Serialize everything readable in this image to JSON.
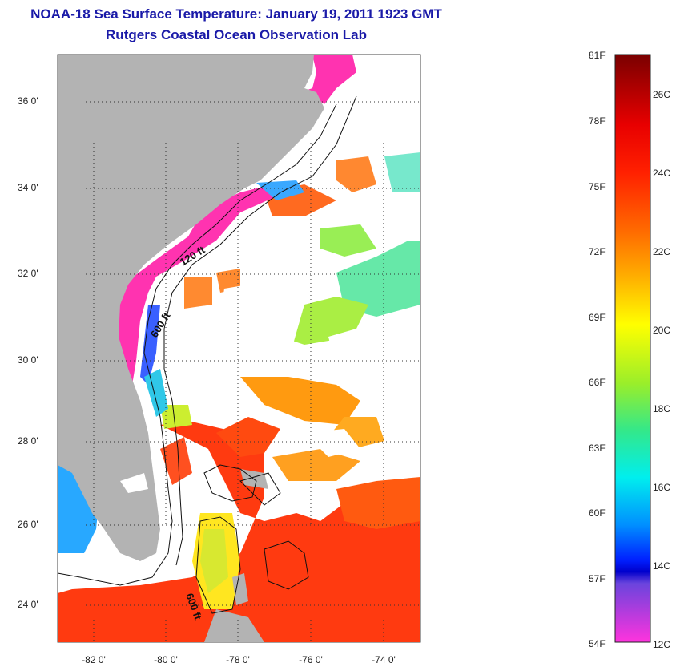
{
  "header": {
    "title": "NOAA-18 Sea Surface Temperature:  January 19, 2011 1923 GMT",
    "subtitle": "Rutgers Coastal Ocean Observation Lab"
  },
  "map": {
    "lat_ticks": [
      "36 0'",
      "34 0'",
      "32 0'",
      "30 0'",
      "28 0'",
      "26 0'",
      "24 0'"
    ],
    "lon_ticks": [
      "-82 0'",
      "-80 0'",
      "-78 0'",
      "-76 0'",
      "-74 0'"
    ],
    "contour_labels": [
      "120 ft",
      "600 ft",
      "600 ft"
    ],
    "colors": {
      "land": "#b3b3b3",
      "cloud": "#ffffff",
      "cold": "#ff33b0",
      "warm": "#ff2a00"
    }
  },
  "colorbar": {
    "fahrenheit": [
      "81F",
      "78F",
      "75F",
      "72F",
      "69F",
      "66F",
      "63F",
      "60F",
      "57F",
      "54F"
    ],
    "celsius": [
      "26C",
      "24C",
      "22C",
      "20C",
      "18C",
      "16C",
      "14C",
      "12C"
    ]
  }
}
